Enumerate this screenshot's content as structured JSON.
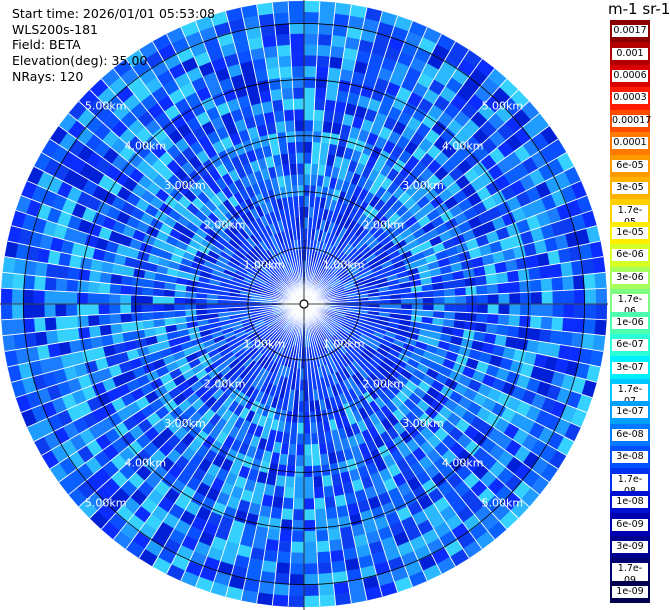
{
  "header": {
    "start_time": "Start time: 2026/01/01 05:53:08",
    "instrument": "WLS200s-181",
    "field": "Field: BETA",
    "elevation": "Elevation(deg): 35.00",
    "nrays": "NRays: 120"
  },
  "colorbar": {
    "title": "m-1 sr-1",
    "levels": [
      "0.0017",
      "0.001",
      "0.0006",
      "0.0003",
      "0.00017",
      "0.0001",
      "6e-05",
      "3e-05",
      "1.7e-05",
      "1e-05",
      "6e-06",
      "3e-06",
      "1.7e-06",
      "1e-06",
      "6e-07",
      "3e-07",
      "1.7e-07",
      "1e-07",
      "6e-08",
      "3e-08",
      "1.7e-08",
      "1e-08",
      "6e-09",
      "3e-09",
      "1.7e-09",
      "1e-09"
    ],
    "colors": [
      "#8b0000",
      "#b00000",
      "#d80000",
      "#ff1a00",
      "#ff4d00",
      "#ff7a00",
      "#ff9900",
      "#ffb300",
      "#ffd000",
      "#ffee00",
      "#d6ff2a",
      "#a6ff5a",
      "#7cff82",
      "#4dffb0",
      "#2bffd8",
      "#00f0ff",
      "#00c8ff",
      "#00a0ff",
      "#0078ff",
      "#0050ff",
      "#0030f0",
      "#0010d0",
      "#0000b0",
      "#000090",
      "#000070",
      "#00004f"
    ]
  },
  "chart_data": {
    "type": "ppi",
    "title": "",
    "field": "BETA",
    "elevation_deg": 35.0,
    "nrays": 120,
    "range_rings_km": [
      1.0,
      2.0,
      3.0,
      4.0,
      5.0
    ],
    "ring_labels": [
      "1.00km",
      "2.00km",
      "3.00km",
      "4.00km",
      "5.00km"
    ],
    "max_range_km": 5.4,
    "value_range": [
      1e-09,
      0.0017
    ],
    "dominant_value_range": [
      3e-08,
      1.7e-07
    ]
  }
}
